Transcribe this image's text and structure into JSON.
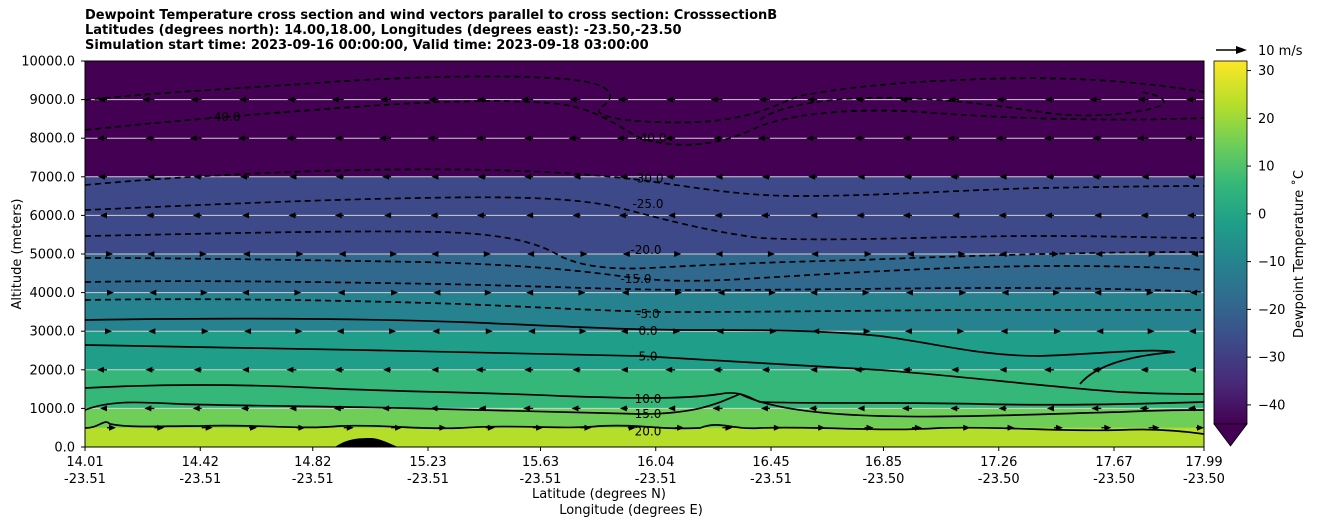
{
  "titles": {
    "line1": "Dewpoint Temperature cross section and wind vectors parallel to cross section: CrosssectionB",
    "line2": "Latitudes (degrees north): 14.00,18.00, Longitudes (degrees east): -23.50,-23.50",
    "line3": "Simulation start time: 2023-09-16 00:00:00, Valid time: 2023-09-18 03:00:00"
  },
  "chart_data": {
    "type": "heatmap",
    "ylabel": "Altitude (meters)",
    "xlabel_lat": "Latitude (degrees N)",
    "xlabel_lon": "Longitude (degrees E)",
    "ylim": [
      0,
      10000
    ],
    "yticks": [
      "0.0",
      "1000.0",
      "2000.0",
      "3000.0",
      "4000.0",
      "5000.0",
      "6000.0",
      "7000.0",
      "8000.0",
      "9000.0",
      "10000.0"
    ],
    "xticks": [
      {
        "lat": "14.01",
        "lon": "-23.51"
      },
      {
        "lat": "14.42",
        "lon": "-23.51"
      },
      {
        "lat": "14.82",
        "lon": "-23.51"
      },
      {
        "lat": "15.23",
        "lon": "-23.51"
      },
      {
        "lat": "15.63",
        "lon": "-23.51"
      },
      {
        "lat": "16.04",
        "lon": "-23.51"
      },
      {
        "lat": "16.45",
        "lon": "-23.51"
      },
      {
        "lat": "16.85",
        "lon": "-23.50"
      },
      {
        "lat": "17.26",
        "lon": "-23.50"
      },
      {
        "lat": "17.67",
        "lon": "-23.50"
      },
      {
        "lat": "17.99",
        "lon": "-23.50"
      }
    ],
    "grid": "horizontal",
    "colorbar": {
      "label": "Dewpoint Temperature ˚C",
      "ticks": [
        "30",
        "20",
        "10",
        "0",
        "−10",
        "−20",
        "−30",
        "−40"
      ],
      "range": [
        -44,
        32
      ],
      "colormap": [
        "#440154",
        "#482878",
        "#3e4989",
        "#31688e",
        "#26828e",
        "#1f9e89",
        "#35b779",
        "#6ece58",
        "#b5de2b",
        "#fde725"
      ]
    },
    "quiver_key": "10 m/s",
    "contour_levels": [
      {
        "value": -40,
        "label": "-40.0",
        "altitude_m": 8550
      },
      {
        "value": -40,
        "label": "-40.0",
        "altitude_m": 8000
      },
      {
        "value": -30,
        "label": "-30.0",
        "altitude_m": 6950
      },
      {
        "value": -25,
        "label": "-25.0",
        "altitude_m": 6300
      },
      {
        "value": -20,
        "label": "-20.0",
        "altitude_m": 5100
      },
      {
        "value": -15,
        "label": "-15.0",
        "altitude_m": 4350
      },
      {
        "value": -5,
        "label": "-5.0",
        "altitude_m": 3450
      },
      {
        "value": 0,
        "label": "0.0",
        "altitude_m": 3000
      },
      {
        "value": 5,
        "label": "5.0",
        "altitude_m": 2350
      },
      {
        "value": 10,
        "label": "10.0",
        "altitude_m": 1250
      },
      {
        "value": 15,
        "label": "15.0",
        "altitude_m": 850
      },
      {
        "value": 20,
        "label": "20.0",
        "altitude_m": 400
      }
    ],
    "background_layers": [
      {
        "from": 9000,
        "to": 10000,
        "temp": -44
      },
      {
        "from": 7000,
        "to": 9000,
        "temp": -40
      },
      {
        "from": 6000,
        "to": 7000,
        "temp": -30
      },
      {
        "from": 5000,
        "to": 6000,
        "temp": -23
      },
      {
        "from": 4000,
        "to": 5000,
        "temp": -16
      },
      {
        "from": 3000,
        "to": 4000,
        "temp": -8
      },
      {
        "from": 2000,
        "to": 3000,
        "temp": 2
      },
      {
        "from": 1000,
        "to": 2000,
        "temp": 10
      },
      {
        "from": 500,
        "to": 1000,
        "temp": 17
      },
      {
        "from": 0,
        "to": 500,
        "temp": 24
      }
    ]
  }
}
